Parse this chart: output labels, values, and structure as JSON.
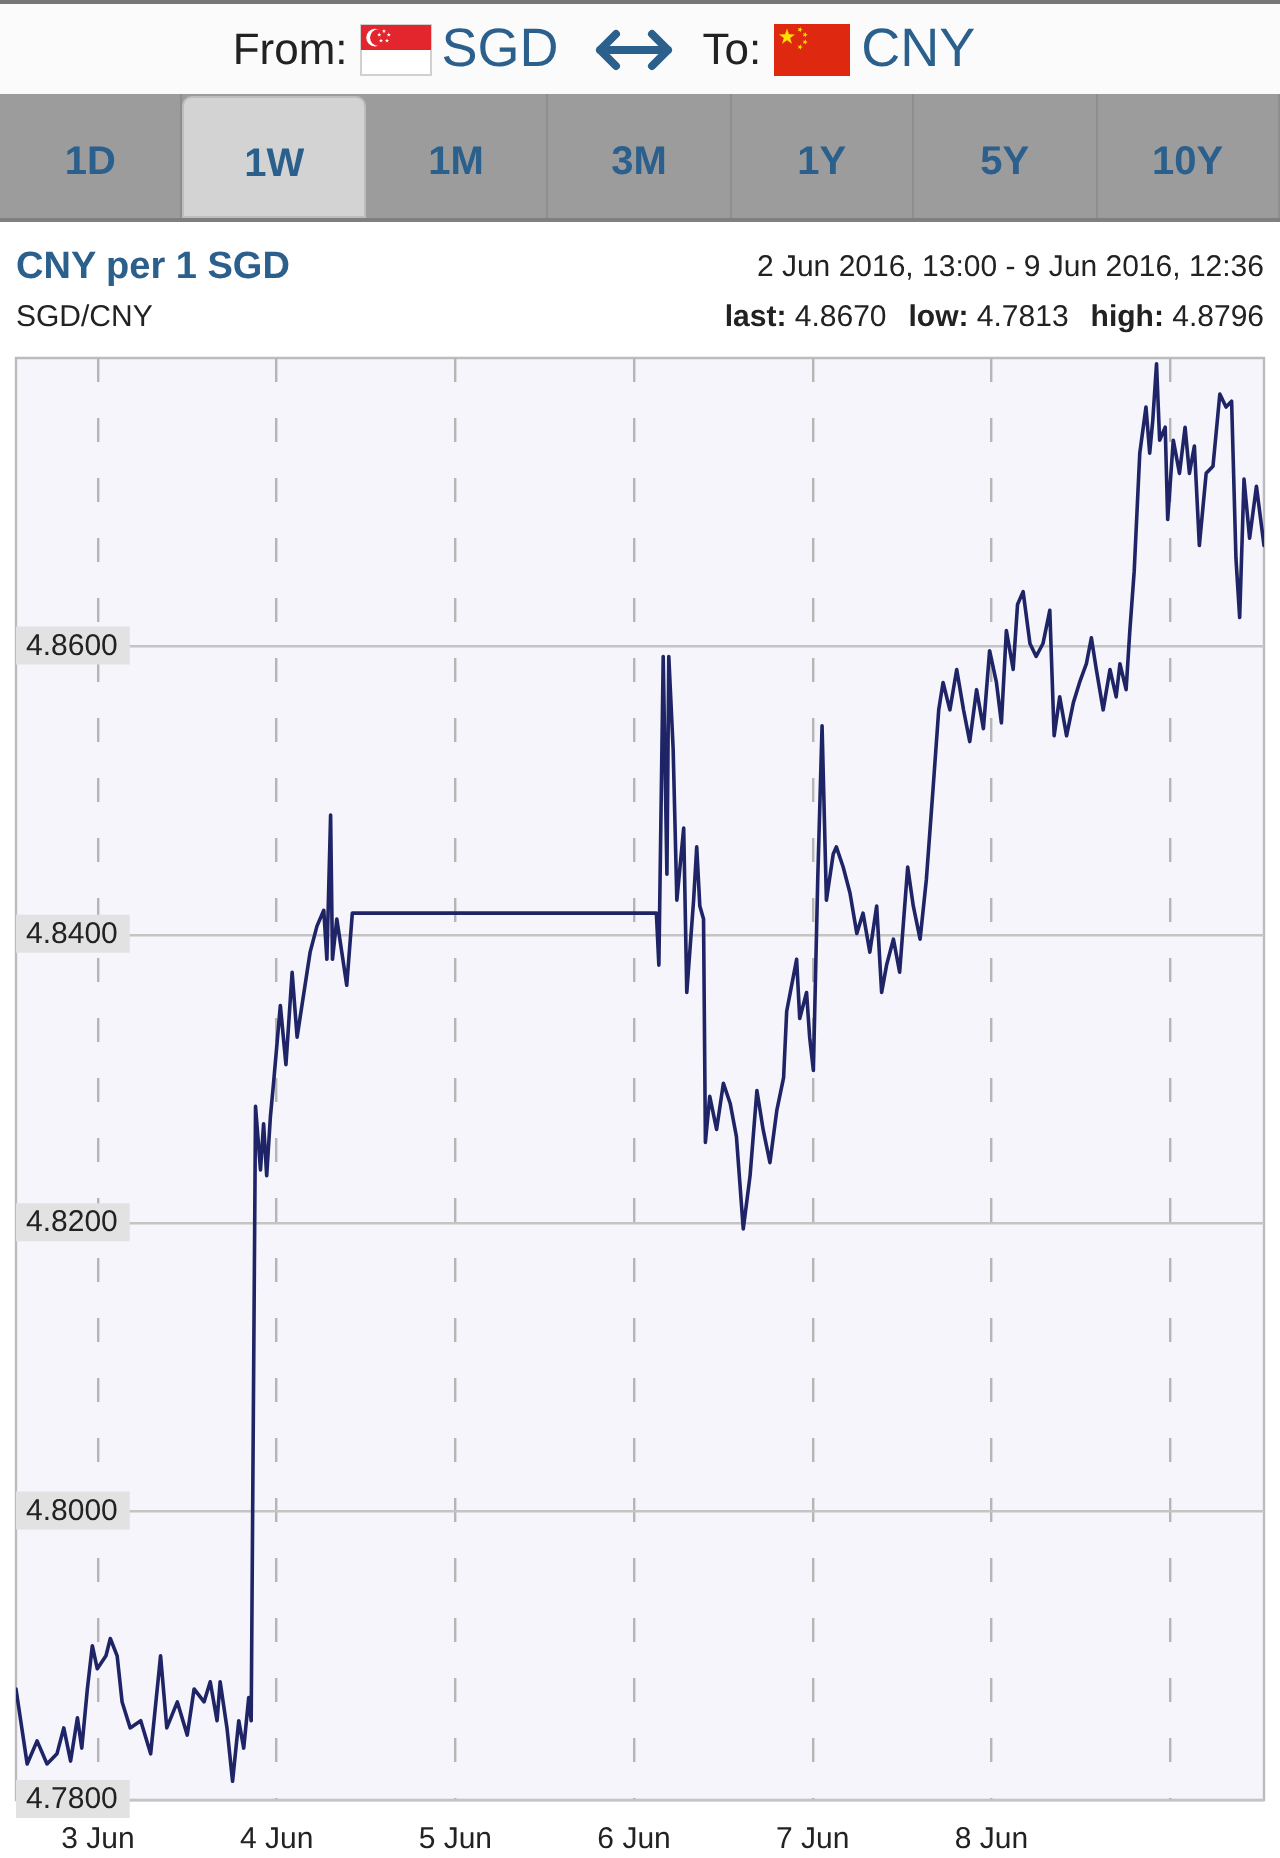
{
  "chart_data": {
    "type": "line",
    "title": "CNY per 1 SGD",
    "subtitle": "SGD/CNY",
    "annotations": [
      "From:",
      "SGD",
      "To:",
      "CNY",
      "1D",
      "1W",
      "1M",
      "3M",
      "1Y",
      "5Y",
      "10Y",
      "2 Jun 2016, 13:00 - 9 Jun 2016, 12:36",
      "last: 4.8670",
      "low: 4.7813",
      "high: 4.8796"
    ],
    "x": [
      "2016-06-02T13:00",
      "2016-06-02T14:30",
      "2016-06-02T15:50",
      "2016-06-02T17:10",
      "2016-06-02T18:30",
      "2016-06-02T19:25",
      "2016-06-02T20:20",
      "2016-06-02T21:15",
      "2016-06-02T21:50",
      "2016-06-02T22:35",
      "2016-06-02T23:15",
      "2016-06-02T23:55",
      "2016-06-03T01:05",
      "2016-06-03T01:40",
      "2016-06-03T02:35",
      "2016-06-03T03:15",
      "2016-06-03T04:20",
      "2016-06-03T05:45",
      "2016-06-03T07:05",
      "2016-06-03T08:25",
      "2016-06-03T09:15",
      "2016-06-03T10:40",
      "2016-06-03T12:00",
      "2016-06-03T12:55",
      "2016-06-03T14:15",
      "2016-06-03T15:05",
      "2016-06-03T16:00",
      "2016-06-03T16:25",
      "2016-06-03T17:20",
      "2016-06-03T18:05",
      "2016-06-03T18:55",
      "2016-06-03T19:35",
      "2016-06-03T20:15",
      "2016-06-03T20:35",
      "2016-06-03T21:10",
      "2016-06-03T21:50",
      "2016-06-03T22:15",
      "2016-06-03T22:40",
      "2016-06-03T23:10",
      "2016-06-03T23:35",
      "2016-06-04T00:30",
      "2016-06-04T01:15",
      "2016-06-04T02:05",
      "2016-06-04T02:45",
      "2016-06-04T03:40",
      "2016-06-04T04:30",
      "2016-06-04T05:25",
      "2016-06-04T06:20",
      "2016-06-04T06:45",
      "2016-06-04T07:15",
      "2016-06-04T07:30",
      "2016-06-04T08:05",
      "2016-06-04T08:45",
      "2016-06-04T09:25",
      "2016-06-04T10:10",
      "2016-06-06T03:00",
      "2016-06-06T03:20",
      "2016-06-06T03:55",
      "2016-06-06T04:25",
      "2016-06-06T04:40",
      "2016-06-06T05:15",
      "2016-06-06T05:45",
      "2016-06-06T06:40",
      "2016-06-06T07:05",
      "2016-06-06T08:00",
      "2016-06-06T08:25",
      "2016-06-06T08:50",
      "2016-06-06T09:20",
      "2016-06-06T09:35",
      "2016-06-06T10:10",
      "2016-06-06T11:05",
      "2016-06-06T12:00",
      "2016-06-06T12:55",
      "2016-06-06T13:45",
      "2016-06-06T14:40",
      "2016-06-06T15:35",
      "2016-06-06T16:30",
      "2016-06-06T17:20",
      "2016-06-06T18:15",
      "2016-06-06T19:10",
      "2016-06-06T20:05",
      "2016-06-06T20:30",
      "2016-06-06T21:50",
      "2016-06-06T22:15",
      "2016-06-06T23:10",
      "2016-06-06T23:35",
      "2016-06-07T00:05",
      "2016-06-07T00:40",
      "2016-06-07T01:15",
      "2016-06-07T01:50",
      "2016-06-07T02:45",
      "2016-06-07T03:10",
      "2016-06-07T04:05",
      "2016-06-07T05:00",
      "2016-06-07T05:55",
      "2016-06-07T06:45",
      "2016-06-07T07:40",
      "2016-06-07T08:35",
      "2016-06-07T09:15",
      "2016-06-07T09:55",
      "2016-06-07T10:50",
      "2016-06-07T11:40",
      "2016-06-07T12:45",
      "2016-06-07T13:30",
      "2016-06-07T14:25",
      "2016-06-07T15:15",
      "2016-06-07T16:10",
      "2016-06-07T16:55",
      "2016-06-07T17:30",
      "2016-06-07T18:25",
      "2016-06-07T19:20",
      "2016-06-07T20:15",
      "2016-06-07T21:05",
      "2016-06-07T22:00",
      "2016-06-07T22:55",
      "2016-06-07T23:45",
      "2016-06-08T00:40",
      "2016-06-08T01:20",
      "2016-06-08T02:00",
      "2016-06-08T02:55",
      "2016-06-08T03:30",
      "2016-06-08T04:15",
      "2016-06-08T05:10",
      "2016-06-08T06:00",
      "2016-06-08T06:55",
      "2016-06-08T07:50",
      "2016-06-08T08:25",
      "2016-06-08T09:10",
      "2016-06-08T10:05",
      "2016-06-08T11:00",
      "2016-06-08T11:50",
      "2016-06-08T12:45",
      "2016-06-08T13:25",
      "2016-06-08T14:05",
      "2016-06-08T15:00",
      "2016-06-08T15:55",
      "2016-06-08T16:45",
      "2016-06-08T17:15",
      "2016-06-08T18:05",
      "2016-06-08T18:35",
      "2016-06-08T19:10",
      "2016-06-08T19:55",
      "2016-06-08T20:45",
      "2016-06-08T21:15",
      "2016-06-08T21:40",
      "2016-06-08T22:10",
      "2016-06-08T22:35",
      "2016-06-08T23:20",
      "2016-06-08T23:40",
      "2016-06-09T00:25",
      "2016-06-09T01:15",
      "2016-06-09T02:00",
      "2016-06-09T02:35",
      "2016-06-09T03:15",
      "2016-06-09T03:55",
      "2016-06-09T04:50",
      "2016-06-09T05:45",
      "2016-06-09T06:40",
      "2016-06-09T07:30",
      "2016-06-09T08:15",
      "2016-06-09T08:50",
      "2016-06-09T09:20",
      "2016-06-09T09:55",
      "2016-06-09T10:40",
      "2016-06-09T11:35",
      "2016-06-09T12:36"
    ],
    "series": [
      {
        "color": "#1f2466",
        "values": [
          4.7877,
          4.7825,
          4.7841,
          4.7825,
          4.7832,
          4.785,
          4.7827,
          4.7857,
          4.7836,
          4.7877,
          4.7907,
          4.7891,
          4.79,
          4.7912,
          4.79,
          4.7868,
          4.785,
          4.7855,
          4.7832,
          4.79,
          4.785,
          4.7868,
          4.7845,
          4.7877,
          4.7868,
          4.7882,
          4.7855,
          4.7882,
          4.785,
          4.7813,
          4.7855,
          4.7836,
          4.7871,
          4.7855,
          4.8281,
          4.8237,
          4.8269,
          4.8233,
          4.8274,
          4.8297,
          4.8351,
          4.831,
          4.8374,
          4.8329,
          4.836,
          4.8388,
          4.8406,
          4.8417,
          4.8383,
          4.8483,
          4.8383,
          4.8411,
          4.8388,
          4.8365,
          4.8415,
          4.8415,
          4.8379,
          4.8593,
          4.8442,
          4.8593,
          4.8529,
          4.8424,
          4.8474,
          4.836,
          4.8424,
          4.8461,
          4.842,
          4.8411,
          4.8256,
          4.8288,
          4.8265,
          4.8297,
          4.8283,
          4.826,
          4.8196,
          4.8233,
          4.8292,
          4.8265,
          4.8242,
          4.8278,
          4.8301,
          4.8347,
          4.8383,
          4.8342,
          4.836,
          4.8329,
          4.8306,
          4.8438,
          4.8545,
          4.8424,
          4.8456,
          4.8461,
          4.8447,
          4.8429,
          4.8401,
          4.8415,
          4.8388,
          4.842,
          4.836,
          4.8379,
          4.8397,
          4.8374,
          4.8447,
          4.842,
          4.8397,
          4.8438,
          4.8502,
          4.8556,
          4.8575,
          4.8556,
          4.8584,
          4.8556,
          4.8534,
          4.857,
          4.8543,
          4.8597,
          4.8575,
          4.8547,
          4.8611,
          4.8584,
          4.8629,
          4.8638,
          4.8602,
          4.8593,
          4.8602,
          4.8625,
          4.8538,
          4.8565,
          4.8538,
          4.8561,
          4.8575,
          4.8588,
          4.8606,
          4.8584,
          4.8556,
          4.8584,
          4.8565,
          4.8588,
          4.857,
          4.8611,
          4.8652,
          4.8734,
          4.8766,
          4.8734,
          4.8757,
          4.8796,
          4.8743,
          4.8752,
          4.8688,
          4.8743,
          4.872,
          4.8752,
          4.872,
          4.8739,
          4.867,
          4.872,
          4.8725,
          4.8775,
          4.8766,
          4.877,
          4.8661,
          4.862,
          4.8716,
          4.8675,
          4.8711,
          4.867
        ]
      }
    ],
    "xlim": [
      "2016-06-02T13:00",
      "2016-06-09T12:36"
    ],
    "xticks": [
      {
        "value": "2016-06-03",
        "label": "3 Jun"
      },
      {
        "value": "2016-06-04",
        "label": "4 Jun"
      },
      {
        "value": "2016-06-05",
        "label": "5 Jun"
      },
      {
        "value": "2016-06-06",
        "label": "6 Jun"
      },
      {
        "value": "2016-06-07",
        "label": "7 Jun"
      },
      {
        "value": "2016-06-08",
        "label": "8 Jun"
      },
      {
        "value": "2016-06-09",
        "label": null
      }
    ],
    "ylim": [
      4.78,
      4.88
    ],
    "yticks": [
      {
        "value": 4.78,
        "label": "4.7800"
      },
      {
        "value": 4.8,
        "label": "4.8000"
      },
      {
        "value": 4.82,
        "label": "4.8200"
      },
      {
        "value": 4.84,
        "label": "4.8400"
      },
      {
        "value": 4.86,
        "label": "4.8600"
      }
    ],
    "grid": true
  }
}
